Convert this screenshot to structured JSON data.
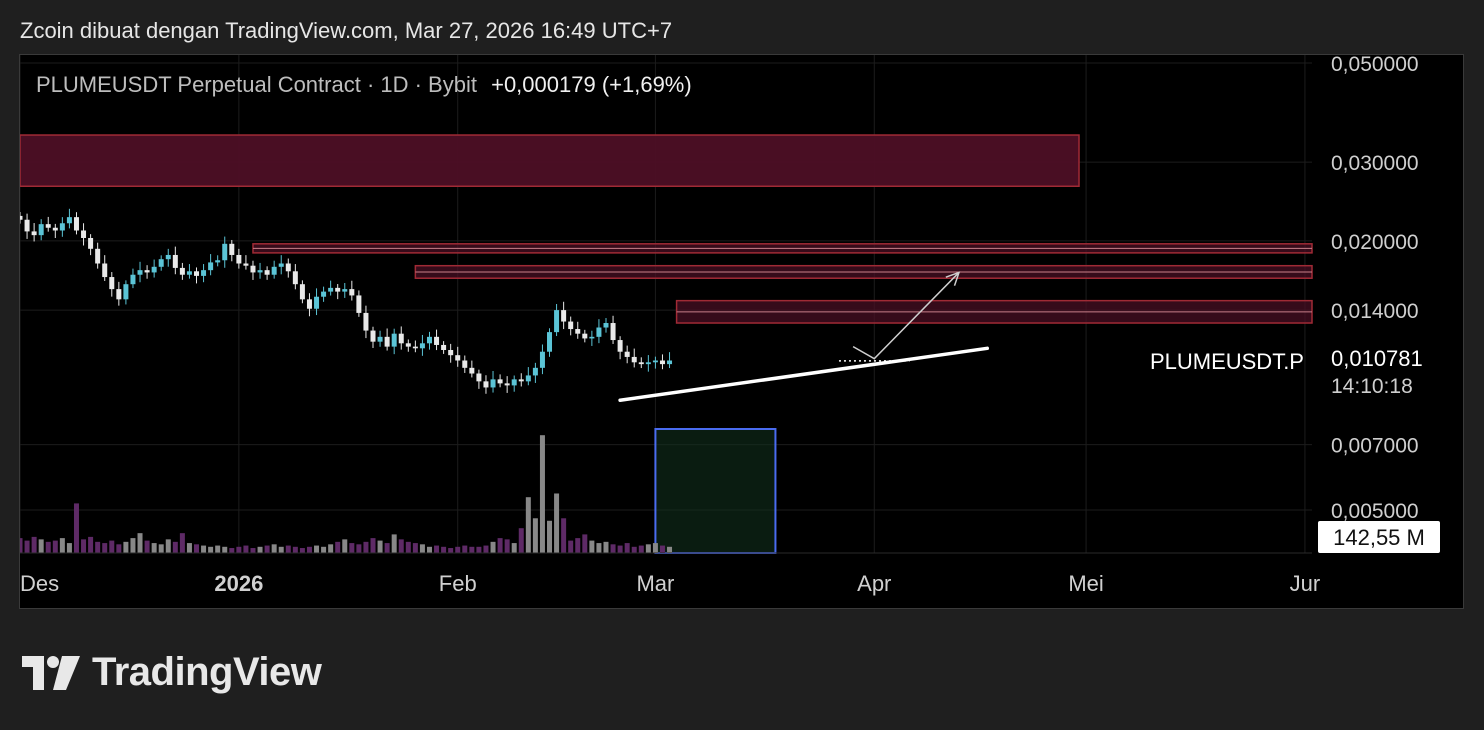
{
  "header": {
    "text": "Zcoin dibuat dengan TradingView.com, Mar 27, 2026 16:49 UTC+7"
  },
  "legend": {
    "symbol": "PLUMEUSDT Perpetual Contract · 1D · Bybit",
    "change": "+0,000179 (+1,69%)"
  },
  "brand": {
    "name": "TradingView",
    "logo": "tradingview-logo"
  },
  "colors": {
    "up": "#5bc4d6",
    "down": "#e9e9e9",
    "zone_fill": "#4d0f25",
    "zone_border": "#a02a35",
    "vol_purple": "#5e2a66",
    "vol_gray": "#888888",
    "highlight": "#4a6cf0"
  },
  "chart_data": {
    "type": "candlestick",
    "symbol": "PLUMEUSDT.P",
    "interval": "1D",
    "y_scale": "log",
    "ylim": [
      0.0042,
      0.058
    ],
    "y_ticks": [
      "0,050000",
      "0,030000",
      "0,020000",
      "0,014000",
      "0,007000",
      "0,005000"
    ],
    "y_tick_values": [
      0.05,
      0.03,
      0.02,
      0.014,
      0.007,
      0.005
    ],
    "x_ticks": [
      {
        "label": "Des",
        "bold": false,
        "date": "2025-12-01"
      },
      {
        "label": "2026",
        "bold": true,
        "date": "2026-01-01"
      },
      {
        "label": "Feb",
        "bold": false,
        "date": "2026-02-01"
      },
      {
        "label": "Mar",
        "bold": false,
        "date": "2026-03-01"
      },
      {
        "label": "Apr",
        "bold": false,
        "date": "2026-04-01"
      },
      {
        "label": "Mei",
        "bold": false,
        "date": "2026-05-01"
      },
      {
        "label": "Jur",
        "bold": false,
        "date": "2026-06-01"
      }
    ],
    "x_range": [
      "2025-12-01",
      "2026-06-02"
    ],
    "last_price": {
      "label": "PLUMEUSDT.P",
      "value": "0,010781",
      "countdown": "14:10:18",
      "price": 0.010781
    },
    "volume_label": "142,55 M",
    "close": [
      0.0223,
      0.021,
      0.0206,
      0.0218,
      0.0214,
      0.0211,
      0.0219,
      0.0226,
      0.0211,
      0.0203,
      0.0192,
      0.0178,
      0.0166,
      0.0156,
      0.0148,
      0.016,
      0.0168,
      0.0172,
      0.017,
      0.0175,
      0.0182,
      0.0186,
      0.0174,
      0.0168,
      0.0171,
      0.0167,
      0.0172,
      0.0179,
      0.0181,
      0.0197,
      0.0186,
      0.0178,
      0.0176,
      0.017,
      0.0172,
      0.0168,
      0.0175,
      0.0178,
      0.0171,
      0.016,
      0.0148,
      0.0141,
      0.015,
      0.0154,
      0.0157,
      0.0154,
      0.0156,
      0.0151,
      0.0138,
      0.0126,
      0.0119,
      0.0122,
      0.0116,
      0.0124,
      0.0118,
      0.0116,
      0.0115,
      0.0118,
      0.0122,
      0.0117,
      0.0114,
      0.0111,
      0.0108,
      0.0104,
      0.0101,
      0.0097,
      0.0094,
      0.0098,
      0.0096,
      0.0095,
      0.0098,
      0.0097,
      0.01,
      0.0104,
      0.0113,
      0.0125,
      0.014,
      0.0132,
      0.0127,
      0.0124,
      0.0121,
      0.0122,
      0.0128,
      0.0131,
      0.012,
      0.0113,
      0.011,
      0.0107,
      0.0106,
      0.0107,
      0.0108,
      0.0106,
      0.0108
    ],
    "candle_dates": [
      "2025-12-01",
      "2026-03-04"
    ],
    "volume_relative": [
      0.12,
      0.1,
      0.13,
      0.11,
      0.09,
      0.1,
      0.12,
      0.08,
      0.4,
      0.11,
      0.13,
      0.09,
      0.08,
      0.1,
      0.07,
      0.09,
      0.12,
      0.16,
      0.1,
      0.08,
      0.07,
      0.11,
      0.09,
      0.16,
      0.08,
      0.07,
      0.06,
      0.05,
      0.06,
      0.05,
      0.04,
      0.05,
      0.06,
      0.04,
      0.05,
      0.06,
      0.07,
      0.05,
      0.06,
      0.05,
      0.04,
      0.05,
      0.06,
      0.05,
      0.07,
      0.09,
      0.11,
      0.08,
      0.07,
      0.09,
      0.12,
      0.1,
      0.08,
      0.15,
      0.11,
      0.09,
      0.08,
      0.07,
      0.05,
      0.06,
      0.05,
      0.04,
      0.05,
      0.06,
      0.05,
      0.05,
      0.06,
      0.09,
      0.12,
      0.11,
      0.08,
      0.2,
      0.45,
      0.28,
      0.95,
      0.26,
      0.48,
      0.28,
      0.1,
      0.12,
      0.15,
      0.1,
      0.08,
      0.09,
      0.07,
      0.06,
      0.08,
      0.05,
      0.06,
      0.07,
      0.08,
      0.06,
      0.05
    ],
    "zones": [
      {
        "from": "2025-12-01",
        "to": "2026-04-30",
        "top": 0.0345,
        "bottom": 0.0265
      },
      {
        "from": "2026-01-03",
        "to": "2026-06-02",
        "top": 0.0197,
        "bottom": 0.0188
      },
      {
        "from": "2026-01-26",
        "to": "2026-06-02",
        "top": 0.0176,
        "bottom": 0.0165
      },
      {
        "from": "2026-03-04",
        "to": "2026-06-02",
        "top": 0.0147,
        "bottom": 0.0131
      }
    ],
    "trendline": {
      "from": [
        "2026-02-24",
        0.0088
      ],
      "to": [
        "2026-04-17",
        0.0115
      ]
    },
    "projection_arrow": {
      "path": [
        [
          "2026-03-29",
          0.0116
        ],
        [
          "2026-04-01",
          0.0109
        ],
        [
          "2026-04-13",
          0.017
        ]
      ]
    },
    "volume_highlight": {
      "from": "2026-03-01",
      "to": "2026-03-18"
    }
  }
}
